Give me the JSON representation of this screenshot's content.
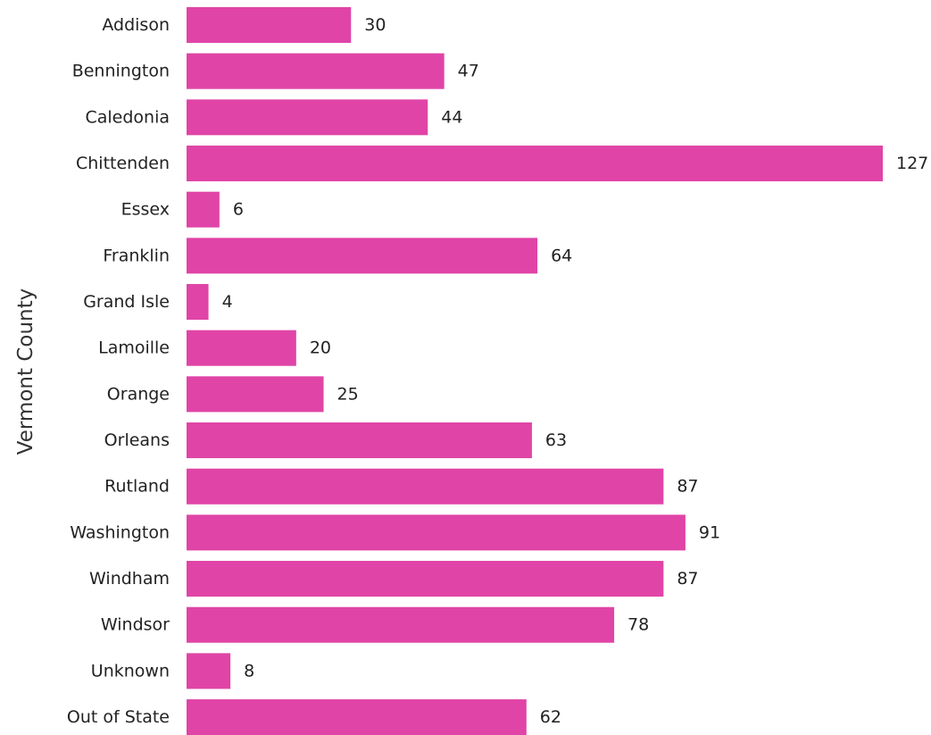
{
  "chart_data": {
    "type": "bar",
    "orientation": "horizontal",
    "title": "",
    "xlabel": "",
    "ylabel": "Vermont County",
    "categories": [
      "Addison",
      "Bennington",
      "Caledonia",
      "Chittenden",
      "Essex",
      "Franklin",
      "Grand Isle",
      "Lamoille",
      "Orange",
      "Orleans",
      "Rutland",
      "Washington",
      "Windham",
      "Windsor",
      "Unknown",
      "Out of State"
    ],
    "values": [
      30,
      47,
      44,
      127,
      6,
      64,
      4,
      20,
      25,
      63,
      87,
      91,
      87,
      78,
      8,
      62
    ],
    "xlim": [
      0,
      127
    ],
    "grid": false,
    "legend": "none",
    "data_labels": true,
    "bar_color": "#E044A7",
    "text_color": "#222222"
  }
}
